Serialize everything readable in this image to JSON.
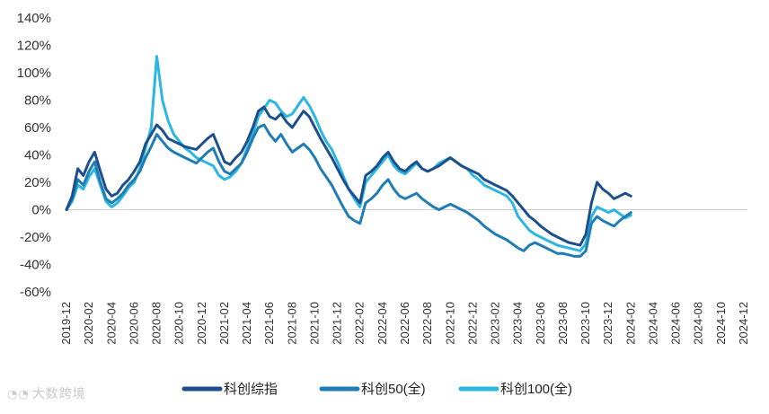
{
  "chart_data": {
    "type": "line",
    "title": "",
    "xlabel": "",
    "ylabel": "",
    "ylim": [
      -60,
      140
    ],
    "ytick_step": 20,
    "ytick_labels": [
      "140%",
      "120%",
      "100%",
      "80%",
      "60%",
      "40%",
      "20%",
      "0%",
      "-20%",
      "-40%",
      "-60%"
    ],
    "x_ticks": [
      "2019-12",
      "2020-02",
      "2020-04",
      "2020-06",
      "2020-08",
      "2020-10",
      "2020-12",
      "2021-02",
      "2021-04",
      "2021-06",
      "2021-08",
      "2021-10",
      "2021-12",
      "2022-02",
      "2022-04",
      "2022-06",
      "2022-08",
      "2022-10",
      "2022-12",
      "2023-02",
      "2023-04",
      "2023-06",
      "2023-08",
      "2023-10",
      "2023-12",
      "2024-02",
      "2024-04",
      "2024-06",
      "2024-08",
      "2024-10",
      "2024-12"
    ],
    "grid": false,
    "legend_position": "bottom-center",
    "series": [
      {
        "name": "科创综指",
        "color": "#1c4f8c",
        "points": [
          [
            0,
            0
          ],
          [
            0.5,
            10
          ],
          [
            1,
            30
          ],
          [
            1.5,
            25
          ],
          [
            2,
            35
          ],
          [
            2.5,
            42
          ],
          [
            3,
            28
          ],
          [
            3.5,
            15
          ],
          [
            4,
            10
          ],
          [
            4.5,
            12
          ],
          [
            5,
            18
          ],
          [
            5.5,
            22
          ],
          [
            6,
            28
          ],
          [
            6.5,
            35
          ],
          [
            7,
            48
          ],
          [
            7.5,
            55
          ],
          [
            8,
            62
          ],
          [
            8.5,
            58
          ],
          [
            9,
            52
          ],
          [
            9.5,
            50
          ],
          [
            10,
            48
          ],
          [
            10.5,
            46
          ],
          [
            11,
            45
          ],
          [
            11.5,
            44
          ],
          [
            12,
            48
          ],
          [
            12.5,
            52
          ],
          [
            13,
            55
          ],
          [
            13.5,
            45
          ],
          [
            14,
            35
          ],
          [
            14.5,
            33
          ],
          [
            15,
            38
          ],
          [
            15.5,
            42
          ],
          [
            16,
            50
          ],
          [
            16.5,
            60
          ],
          [
            17,
            72
          ],
          [
            17.5,
            75
          ],
          [
            18,
            68
          ],
          [
            18.5,
            66
          ],
          [
            19,
            70
          ],
          [
            19.5,
            64
          ],
          [
            20,
            60
          ],
          [
            20.5,
            66
          ],
          [
            21,
            72
          ],
          [
            21.5,
            68
          ],
          [
            22,
            60
          ],
          [
            22.5,
            52
          ],
          [
            23,
            45
          ],
          [
            23.5,
            38
          ],
          [
            24,
            30
          ],
          [
            24.5,
            22
          ],
          [
            25,
            15
          ],
          [
            25.5,
            10
          ],
          [
            26,
            5
          ],
          [
            26.5,
            25
          ],
          [
            27,
            28
          ],
          [
            27.5,
            32
          ],
          [
            28,
            38
          ],
          [
            28.5,
            42
          ],
          [
            29,
            35
          ],
          [
            29.5,
            30
          ],
          [
            30,
            28
          ],
          [
            30.5,
            32
          ],
          [
            31,
            35
          ],
          [
            31.5,
            30
          ],
          [
            32,
            28
          ],
          [
            32.5,
            30
          ],
          [
            33,
            32
          ],
          [
            33.5,
            35
          ],
          [
            34,
            38
          ],
          [
            34.5,
            35
          ],
          [
            35,
            32
          ],
          [
            35.5,
            30
          ],
          [
            36,
            28
          ],
          [
            36.5,
            26
          ],
          [
            37,
            22
          ],
          [
            37.5,
            20
          ],
          [
            38,
            18
          ],
          [
            38.5,
            16
          ],
          [
            39,
            14
          ],
          [
            39.5,
            10
          ],
          [
            40,
            5
          ],
          [
            40.5,
            0
          ],
          [
            41,
            -5
          ],
          [
            41.5,
            -8
          ],
          [
            42,
            -12
          ],
          [
            42.5,
            -15
          ],
          [
            43,
            -18
          ],
          [
            43.5,
            -20
          ],
          [
            44,
            -22
          ],
          [
            44.5,
            -24
          ],
          [
            45,
            -25
          ],
          [
            45.5,
            -26
          ],
          [
            46,
            -18
          ],
          [
            46.5,
            5
          ],
          [
            47,
            20
          ],
          [
            47.5,
            15
          ],
          [
            48,
            12
          ],
          [
            48.5,
            8
          ],
          [
            49,
            10
          ],
          [
            49.5,
            12
          ],
          [
            50,
            10
          ]
        ]
      },
      {
        "name": "科创50(全)",
        "color": "#1f7cb4",
        "points": [
          [
            0,
            0
          ],
          [
            0.5,
            8
          ],
          [
            1,
            22
          ],
          [
            1.5,
            18
          ],
          [
            2,
            28
          ],
          [
            2.5,
            35
          ],
          [
            3,
            20
          ],
          [
            3.5,
            8
          ],
          [
            4,
            5
          ],
          [
            4.5,
            8
          ],
          [
            5,
            12
          ],
          [
            5.5,
            18
          ],
          [
            6,
            22
          ],
          [
            6.5,
            28
          ],
          [
            7,
            38
          ],
          [
            7.5,
            46
          ],
          [
            8,
            55
          ],
          [
            8.5,
            50
          ],
          [
            9,
            45
          ],
          [
            9.5,
            42
          ],
          [
            10,
            40
          ],
          [
            10.5,
            38
          ],
          [
            11,
            36
          ],
          [
            11.5,
            34
          ],
          [
            12,
            38
          ],
          [
            12.5,
            42
          ],
          [
            13,
            45
          ],
          [
            13.5,
            35
          ],
          [
            14,
            28
          ],
          [
            14.5,
            26
          ],
          [
            15,
            30
          ],
          [
            15.5,
            34
          ],
          [
            16,
            42
          ],
          [
            16.5,
            52
          ],
          [
            17,
            60
          ],
          [
            17.5,
            62
          ],
          [
            18,
            55
          ],
          [
            18.5,
            50
          ],
          [
            19,
            55
          ],
          [
            19.5,
            48
          ],
          [
            20,
            42
          ],
          [
            20.5,
            45
          ],
          [
            21,
            48
          ],
          [
            21.5,
            44
          ],
          [
            22,
            38
          ],
          [
            22.5,
            30
          ],
          [
            23,
            24
          ],
          [
            23.5,
            18
          ],
          [
            24,
            10
          ],
          [
            24.5,
            2
          ],
          [
            25,
            -5
          ],
          [
            25.5,
            -8
          ],
          [
            26,
            -10
          ],
          [
            26.5,
            5
          ],
          [
            27,
            8
          ],
          [
            27.5,
            12
          ],
          [
            28,
            18
          ],
          [
            28.5,
            22
          ],
          [
            29,
            15
          ],
          [
            29.5,
            10
          ],
          [
            30,
            8
          ],
          [
            30.5,
            10
          ],
          [
            31,
            12
          ],
          [
            31.5,
            8
          ],
          [
            32,
            5
          ],
          [
            32.5,
            2
          ],
          [
            33,
            0
          ],
          [
            33.5,
            2
          ],
          [
            34,
            4
          ],
          [
            34.5,
            2
          ],
          [
            35,
            0
          ],
          [
            35.5,
            -2
          ],
          [
            36,
            -5
          ],
          [
            36.5,
            -8
          ],
          [
            37,
            -12
          ],
          [
            37.5,
            -15
          ],
          [
            38,
            -18
          ],
          [
            38.5,
            -20
          ],
          [
            39,
            -22
          ],
          [
            39.5,
            -25
          ],
          [
            40,
            -28
          ],
          [
            40.5,
            -30
          ],
          [
            41,
            -26
          ],
          [
            41.5,
            -24
          ],
          [
            42,
            -26
          ],
          [
            42.5,
            -28
          ],
          [
            43,
            -30
          ],
          [
            43.5,
            -32
          ],
          [
            44,
            -32
          ],
          [
            44.5,
            -33
          ],
          [
            45,
            -34
          ],
          [
            45.5,
            -34
          ],
          [
            46,
            -30
          ],
          [
            46.5,
            -10
          ],
          [
            47,
            -5
          ],
          [
            47.5,
            -8
          ],
          [
            48,
            -10
          ],
          [
            48.5,
            -12
          ],
          [
            49,
            -8
          ],
          [
            49.5,
            -5
          ],
          [
            50,
            -2
          ]
        ]
      },
      {
        "name": "科创100(全)",
        "color": "#2bb7e0",
        "points": [
          [
            0,
            0
          ],
          [
            0.5,
            6
          ],
          [
            1,
            18
          ],
          [
            1.5,
            15
          ],
          [
            2,
            24
          ],
          [
            2.5,
            30
          ],
          [
            3,
            18
          ],
          [
            3.5,
            6
          ],
          [
            4,
            2
          ],
          [
            4.5,
            5
          ],
          [
            5,
            10
          ],
          [
            5.5,
            16
          ],
          [
            6,
            20
          ],
          [
            6.5,
            30
          ],
          [
            7,
            45
          ],
          [
            7.5,
            60
          ],
          [
            8,
            112
          ],
          [
            8.5,
            80
          ],
          [
            9,
            65
          ],
          [
            9.5,
            55
          ],
          [
            10,
            50
          ],
          [
            10.5,
            45
          ],
          [
            11,
            42
          ],
          [
            11.5,
            38
          ],
          [
            12,
            36
          ],
          [
            12.5,
            34
          ],
          [
            13,
            32
          ],
          [
            13.5,
            25
          ],
          [
            14,
            22
          ],
          [
            14.5,
            24
          ],
          [
            15,
            28
          ],
          [
            15.5,
            34
          ],
          [
            16,
            45
          ],
          [
            16.5,
            55
          ],
          [
            17,
            68
          ],
          [
            17.5,
            74
          ],
          [
            18,
            80
          ],
          [
            18.5,
            78
          ],
          [
            19,
            72
          ],
          [
            19.5,
            68
          ],
          [
            20,
            70
          ],
          [
            20.5,
            76
          ],
          [
            21,
            82
          ],
          [
            21.5,
            76
          ],
          [
            22,
            68
          ],
          [
            22.5,
            58
          ],
          [
            23,
            50
          ],
          [
            23.5,
            44
          ],
          [
            24,
            35
          ],
          [
            24.5,
            25
          ],
          [
            25,
            15
          ],
          [
            25.5,
            8
          ],
          [
            26,
            2
          ],
          [
            26.5,
            20
          ],
          [
            27,
            25
          ],
          [
            27.5,
            30
          ],
          [
            28,
            35
          ],
          [
            28.5,
            40
          ],
          [
            29,
            32
          ],
          [
            29.5,
            28
          ],
          [
            30,
            26
          ],
          [
            30.5,
            30
          ],
          [
            31,
            34
          ],
          [
            31.5,
            30
          ],
          [
            32,
            28
          ],
          [
            32.5,
            30
          ],
          [
            33,
            34
          ],
          [
            33.5,
            36
          ],
          [
            34,
            38
          ],
          [
            34.5,
            35
          ],
          [
            35,
            32
          ],
          [
            35.5,
            30
          ],
          [
            36,
            25
          ],
          [
            36.5,
            22
          ],
          [
            37,
            18
          ],
          [
            37.5,
            16
          ],
          [
            38,
            14
          ],
          [
            38.5,
            12
          ],
          [
            39,
            10
          ],
          [
            39.5,
            5
          ],
          [
            40,
            -5
          ],
          [
            40.5,
            -10
          ],
          [
            41,
            -15
          ],
          [
            41.5,
            -18
          ],
          [
            42,
            -20
          ],
          [
            42.5,
            -22
          ],
          [
            43,
            -24
          ],
          [
            43.5,
            -26
          ],
          [
            44,
            -27
          ],
          [
            44.5,
            -28
          ],
          [
            45,
            -29
          ],
          [
            45.5,
            -30
          ],
          [
            46,
            -25
          ],
          [
            46.5,
            -5
          ],
          [
            47,
            2
          ],
          [
            47.5,
            0
          ],
          [
            48,
            -2
          ],
          [
            48.5,
            0
          ],
          [
            49,
            -3
          ],
          [
            49.5,
            -6
          ],
          [
            50,
            -4
          ]
        ]
      }
    ]
  },
  "watermark": {
    "logo_icon": "wechat-logo-icon",
    "text": "大数跨境"
  }
}
